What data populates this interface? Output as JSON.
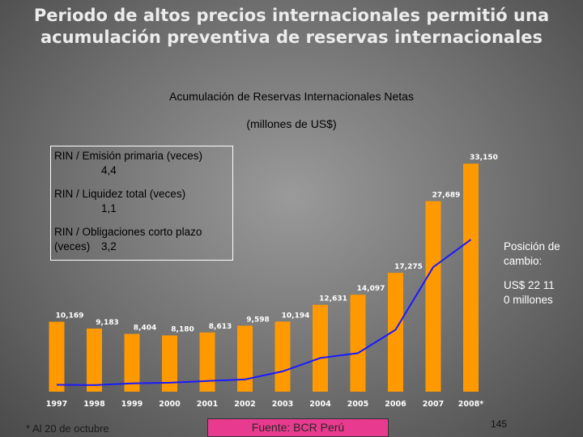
{
  "slide": {
    "title": "Periodo de altos precios internacionales permitió una acumulación preventiva de reservas internacionales",
    "footnote": "* Al 20 de octubre",
    "source": "Fuente: BCR Perú",
    "page_number": "145"
  },
  "info_box": {
    "ratios": [
      {
        "label": "RIN / Emisión primaria (veces)",
        "value": "4,4"
      },
      {
        "label": "RIN / Liquidez total (veces)",
        "value": "1,1"
      },
      {
        "label": "RIN / Obligaciones corto plazo (veces)",
        "value": "3,2"
      }
    ]
  },
  "side_note": {
    "line1": "Posición de cambio:",
    "line2": "US$ 22 110 millones"
  },
  "chart_data": {
    "type": "bar",
    "title": "Acumulación de Reservas Internacionales Netas",
    "subtitle": "(millones de US$)",
    "categories": [
      "1997",
      "1998",
      "1999",
      "2000",
      "2001",
      "2002",
      "2003",
      "2004",
      "2005",
      "2006",
      "2007",
      "2008*"
    ],
    "series": [
      {
        "type": "bar",
        "values": [
          10169,
          9183,
          8404,
          8180,
          8613,
          9598,
          10194,
          12631,
          14097,
          17275,
          27689,
          33150
        ],
        "labels": [
          "10,169",
          "9,183",
          "8,404",
          "8,180",
          "8,613",
          "9,598",
          "10,194",
          "12,631",
          "14,097",
          "17,275",
          "27,689",
          "33,150"
        ],
        "color": "#ff9900"
      },
      {
        "type": "line",
        "values": [
          1000,
          950,
          1200,
          1300,
          1550,
          1780,
          2950,
          4900,
          5600,
          9000,
          18100,
          22110
        ],
        "color": "#1a1aff"
      }
    ],
    "ylim": [
      0,
      34000
    ],
    "grid": false,
    "legend": "none"
  }
}
